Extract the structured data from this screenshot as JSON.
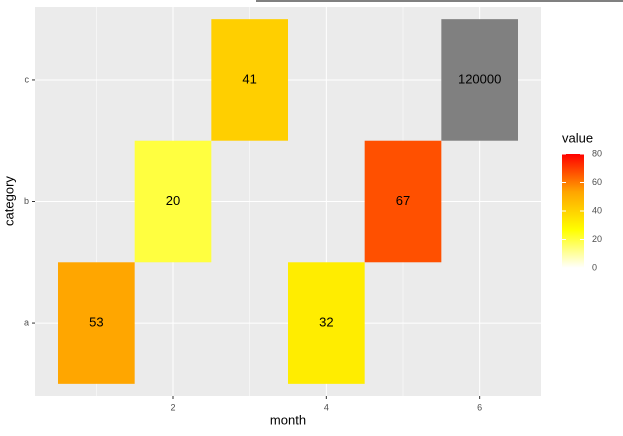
{
  "chart_data": {
    "type": "tile",
    "x_label": "month",
    "y_label": "category",
    "categories": [
      "a",
      "b",
      "c"
    ],
    "x": [
      1,
      2,
      3,
      4,
      5,
      6
    ],
    "y": [
      "a",
      "b",
      "c",
      "a",
      "b",
      "c"
    ],
    "values": [
      53,
      20,
      41,
      32,
      67,
      120000
    ],
    "xlim": [
      0.2,
      6.8
    ],
    "xticks": [
      2,
      4,
      6
    ],
    "grid": true,
    "colorbar": {
      "title": "value",
      "lim": [
        0,
        80
      ],
      "ticks": [
        0,
        20,
        40,
        60,
        80
      ],
      "colors": [
        "#ffffff",
        "#ffff00",
        "#ffa500",
        "#ff0000"
      ],
      "na_color": "#808080"
    }
  }
}
